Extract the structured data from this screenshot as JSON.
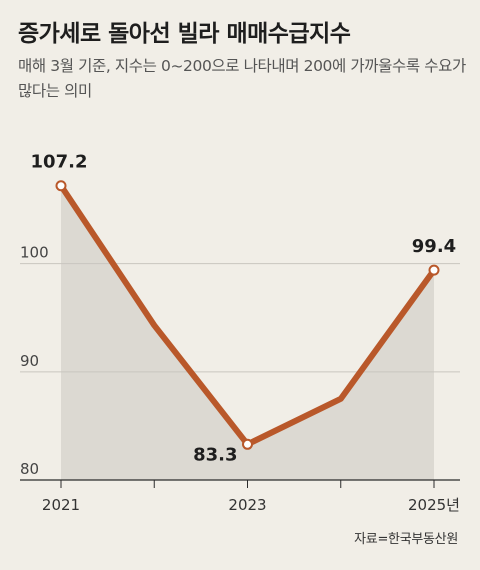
{
  "header": {
    "title": "증가세로 돌아선 빌라 매매수급지수",
    "subtitle": "매해 3월 기준, 지수는 0~200으로 나타내며 200에 가까울수록 수요가 많다는 의미"
  },
  "source": "자료=한국부동산원",
  "colors": {
    "line": "#b9582a",
    "area": "#dcd9d2",
    "grid": "#c9c6bf",
    "axis": "#2b2b2b",
    "background": "#f1eee7"
  },
  "chart_data": {
    "type": "line",
    "x": [
      2021,
      2022,
      2023,
      2024,
      2025
    ],
    "values": [
      107.2,
      94.3,
      83.3,
      87.5,
      99.4
    ],
    "ylim": [
      80,
      113
    ],
    "yticks": [
      80,
      90,
      100
    ],
    "xticks": [
      {
        "x": 2021,
        "label": "2021"
      },
      {
        "x": 2022,
        "label": ""
      },
      {
        "x": 2023,
        "label": "2023"
      },
      {
        "x": 2024,
        "label": ""
      },
      {
        "x": 2025,
        "label": "2025년"
      }
    ],
    "annotations": [
      {
        "x": 2021,
        "label": "107.2"
      },
      {
        "x": 2023,
        "label": "83.3"
      },
      {
        "x": 2025,
        "label": "99.4"
      }
    ],
    "grid": true
  }
}
